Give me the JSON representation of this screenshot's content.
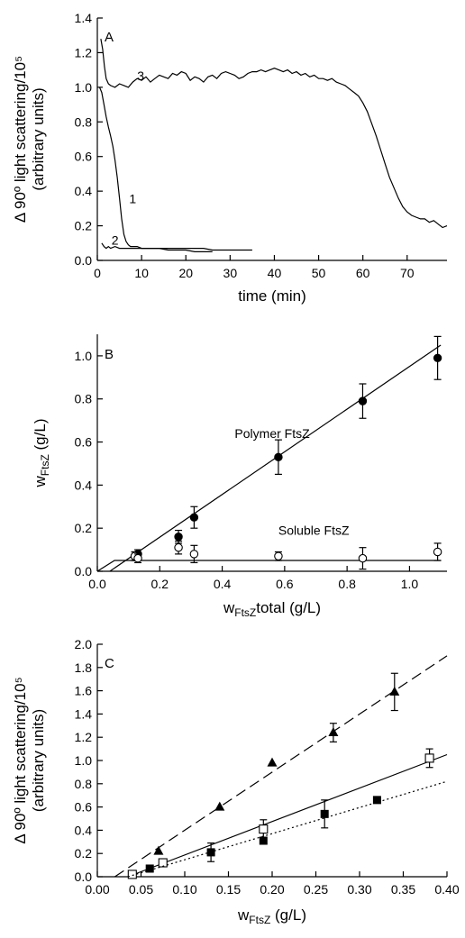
{
  "chart_data": [
    {
      "type": "line",
      "panel_label": "A",
      "xlabel": "time (min)",
      "ylabel_line1": "Δ 90º light scattering/10⁵",
      "ylabel_line2": "(arbitrary units)",
      "xlim": [
        0,
        79
      ],
      "ylim": [
        0,
        1.4
      ],
      "xticks": [
        0,
        10,
        20,
        30,
        40,
        50,
        60,
        70
      ],
      "yticks": [
        0.0,
        0.2,
        0.4,
        0.6,
        0.8,
        1.0,
        1.2,
        1.4
      ],
      "series": [
        {
          "label": "3",
          "label_pos": [
            9,
            1.04
          ],
          "x": [
            0.8,
            1.2,
            1.6,
            2.0,
            2.5,
            3,
            4,
            5,
            6,
            7,
            8,
            9,
            10,
            11,
            12,
            13,
            14,
            15,
            16,
            17,
            18,
            19,
            20,
            21,
            22,
            23,
            24,
            25,
            26,
            27,
            28,
            29,
            30,
            31,
            32,
            33,
            34,
            35,
            36,
            37,
            38,
            39,
            40,
            41,
            42,
            43,
            44,
            45,
            46,
            47,
            48,
            49,
            50,
            51,
            52,
            53,
            54,
            55,
            56,
            57,
            58,
            59,
            60,
            61,
            62,
            63,
            64,
            65,
            66,
            67,
            68,
            69,
            70,
            71,
            72,
            73,
            74,
            75,
            76,
            77,
            78,
            79
          ],
          "y": [
            1.28,
            1.22,
            1.12,
            1.05,
            1.02,
            1.01,
            1.0,
            1.02,
            1.01,
            1.0,
            1.03,
            1.05,
            1.04,
            1.06,
            1.03,
            1.05,
            1.07,
            1.06,
            1.05,
            1.08,
            1.07,
            1.09,
            1.08,
            1.04,
            1.06,
            1.05,
            1.03,
            1.06,
            1.07,
            1.05,
            1.08,
            1.09,
            1.08,
            1.07,
            1.05,
            1.06,
            1.08,
            1.09,
            1.09,
            1.1,
            1.09,
            1.1,
            1.11,
            1.1,
            1.09,
            1.1,
            1.08,
            1.09,
            1.07,
            1.08,
            1.06,
            1.07,
            1.05,
            1.05,
            1.04,
            1.05,
            1.03,
            1.02,
            1.01,
            0.99,
            0.97,
            0.95,
            0.91,
            0.86,
            0.79,
            0.72,
            0.64,
            0.56,
            0.48,
            0.42,
            0.36,
            0.31,
            0.28,
            0.26,
            0.25,
            0.24,
            0.24,
            0.22,
            0.23,
            0.21,
            0.19,
            0.2
          ]
        },
        {
          "label": "1",
          "label_pos": [
            7.2,
            0.33
          ],
          "x": [
            0.5,
            1.0,
            1.5,
            2.0,
            2.5,
            3.0,
            3.5,
            4.0,
            4.5,
            5.0,
            5.5,
            6.0,
            6.5,
            7.0,
            7.5,
            8.0,
            9,
            10,
            12,
            14,
            16,
            18,
            20,
            22,
            24,
            26
          ],
          "y": [
            1.0,
            0.97,
            0.9,
            0.83,
            0.77,
            0.72,
            0.66,
            0.58,
            0.48,
            0.36,
            0.24,
            0.15,
            0.11,
            0.09,
            0.08,
            0.08,
            0.08,
            0.07,
            0.07,
            0.07,
            0.06,
            0.06,
            0.06,
            0.05,
            0.05,
            0.05
          ]
        },
        {
          "label": "2",
          "label_pos": [
            3.2,
            0.09
          ],
          "x": [
            1.0,
            1.5,
            2.0,
            2.5,
            3.0,
            4,
            5,
            6,
            7,
            8,
            10,
            12,
            14,
            16,
            18,
            20,
            22,
            24,
            26,
            28,
            30,
            32,
            34,
            35
          ],
          "y": [
            0.1,
            0.08,
            0.07,
            0.08,
            0.07,
            0.08,
            0.07,
            0.07,
            0.07,
            0.07,
            0.07,
            0.07,
            0.07,
            0.07,
            0.07,
            0.07,
            0.07,
            0.07,
            0.06,
            0.06,
            0.06,
            0.06,
            0.06,
            0.06
          ]
        }
      ]
    },
    {
      "type": "scatter",
      "panel_label": "B",
      "ylabel_main": "w",
      "ylabel_sub": "FtsZ",
      "ylabel_tail": " (g/L)",
      "xlabel_main": "w",
      "xlabel_sub": "FtsZ",
      "xlabel_tail": "total (g/L)",
      "xlim": [
        0,
        1.12
      ],
      "ylim": [
        0,
        1.1
      ],
      "xticks": [
        0.0,
        0.2,
        0.4,
        0.6,
        0.8,
        1.0
      ],
      "yticks": [
        0.0,
        0.2,
        0.4,
        0.6,
        0.8,
        1.0
      ],
      "series": [
        {
          "name": "Polymer FtsZ",
          "marker": "filled-circle",
          "x": [
            0.12,
            0.13,
            0.26,
            0.31,
            0.58,
            0.85,
            1.09
          ],
          "y": [
            0.07,
            0.08,
            0.16,
            0.25,
            0.53,
            0.79,
            0.99
          ],
          "err": [
            0.02,
            0.02,
            0.03,
            0.05,
            0.08,
            0.08,
            0.1
          ],
          "fit_x": [
            0.04,
            1.1
          ],
          "fit_y": [
            0.0,
            1.05
          ],
          "name_pos": [
            0.44,
            0.62
          ]
        },
        {
          "name": "Soluble FtsZ",
          "marker": "open-circle",
          "x": [
            0.12,
            0.13,
            0.26,
            0.31,
            0.58,
            0.85,
            1.09
          ],
          "y": [
            0.07,
            0.06,
            0.11,
            0.08,
            0.07,
            0.06,
            0.09
          ],
          "err": [
            0.02,
            0.02,
            0.03,
            0.04,
            0.02,
            0.05,
            0.04
          ],
          "fit_x": [
            0.0,
            0.055,
            1.1
          ],
          "fit_y": [
            0.0,
            0.05,
            0.05
          ],
          "name_pos": [
            0.58,
            0.17
          ]
        }
      ]
    },
    {
      "type": "scatter",
      "panel_label": "C",
      "ylabel_line1": "Δ 90º light scattering/10⁵",
      "ylabel_line2": "(arbitrary units)",
      "xlabel_main": "w",
      "xlabel_sub": "FtsZ",
      "xlabel_tail": " (g/L)",
      "xlim": [
        0,
        0.4
      ],
      "ylim": [
        0,
        2.0
      ],
      "xticks": [
        0.0,
        0.05,
        0.1,
        0.15,
        0.2,
        0.25,
        0.3,
        0.35,
        0.4
      ],
      "xtick_labels": [
        "0.00",
        "0.05",
        "0.10",
        "0.15",
        "0.20",
        "0.25",
        "0.30",
        "0.35",
        "0.40"
      ],
      "yticks": [
        0.0,
        0.2,
        0.4,
        0.6,
        0.8,
        1.0,
        1.2,
        1.4,
        1.6,
        1.8,
        2.0
      ],
      "series": [
        {
          "marker": "filled-triangle",
          "x": [
            0.07,
            0.14,
            0.2,
            0.27,
            0.34
          ],
          "y": [
            0.22,
            0.6,
            0.98,
            1.24,
            1.59
          ],
          "err": [
            0.0,
            0.0,
            0.0,
            0.08,
            0.16
          ],
          "fit_x": [
            0.02,
            0.4
          ],
          "fit_y": [
            0.0,
            1.9
          ],
          "fit_style": "dashed"
        },
        {
          "marker": "open-square",
          "x": [
            0.04,
            0.075,
            0.19,
            0.38
          ],
          "y": [
            0.02,
            0.12,
            0.41,
            1.02
          ],
          "err": [
            0.0,
            0.0,
            0.08,
            0.08
          ],
          "fit_x": [
            0.035,
            0.4
          ],
          "fit_y": [
            0.0,
            1.05
          ],
          "fit_style": "solid"
        },
        {
          "marker": "filled-square",
          "x": [
            0.06,
            0.13,
            0.19,
            0.26,
            0.32
          ],
          "y": [
            0.07,
            0.21,
            0.31,
            0.54,
            0.66
          ],
          "err": [
            0.0,
            0.08,
            0.0,
            0.12,
            0.0
          ],
          "fit_x": [
            0.035,
            0.4
          ],
          "fit_y": [
            0.0,
            0.82
          ],
          "fit_style": "dotted"
        }
      ]
    }
  ]
}
